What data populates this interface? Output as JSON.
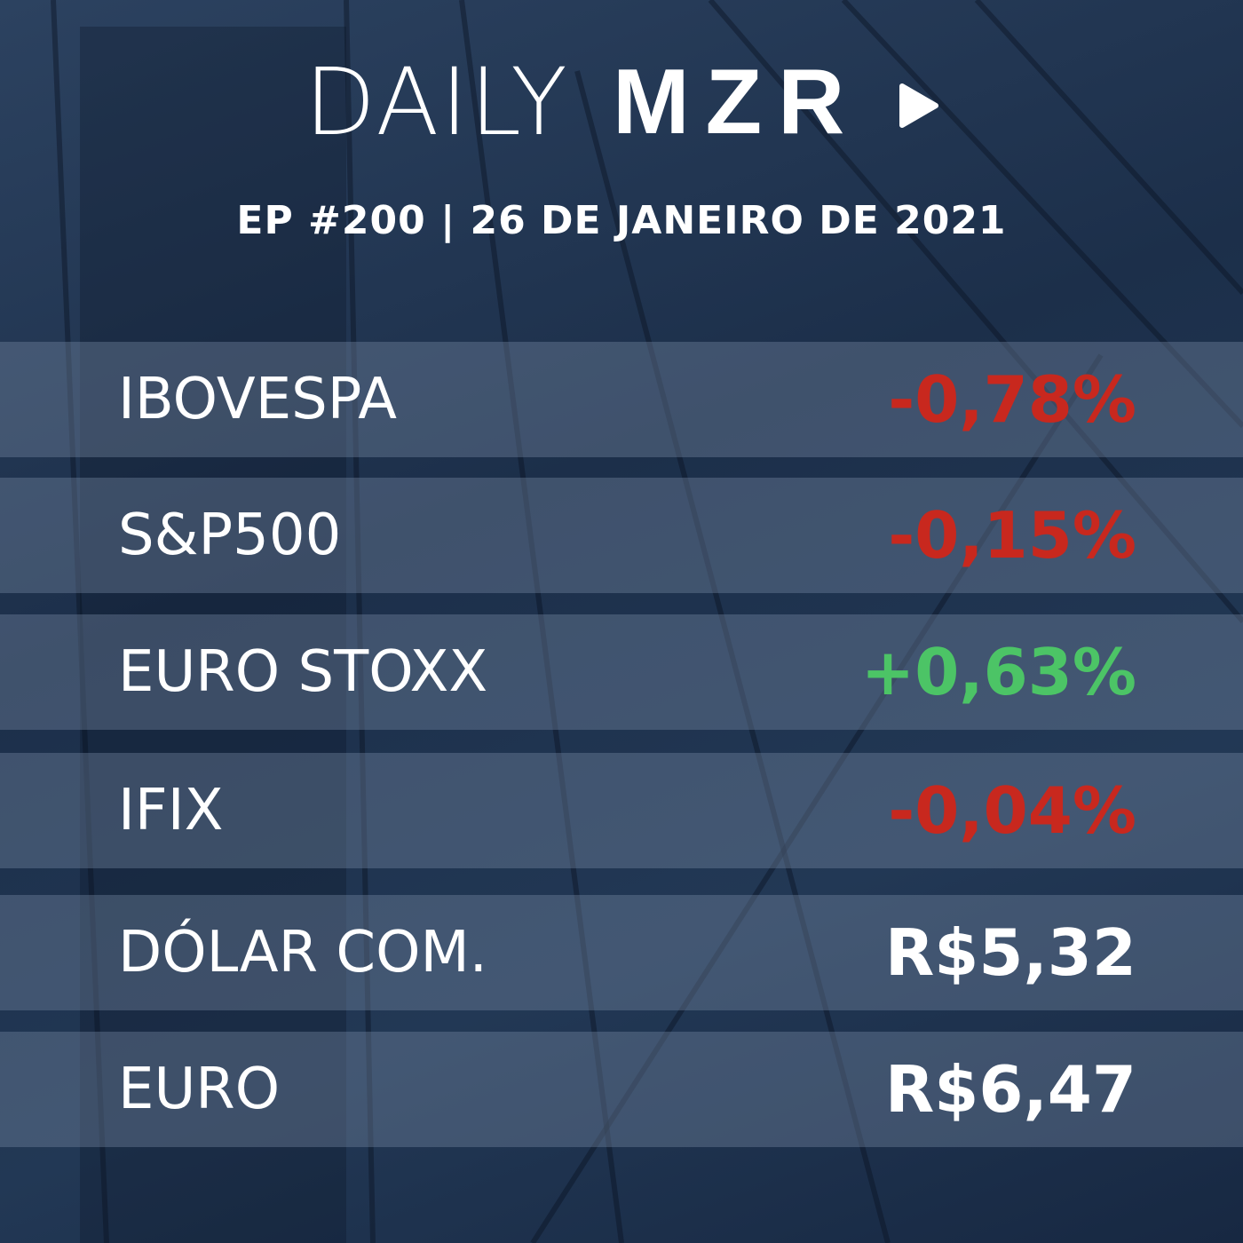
{
  "header": {
    "brand_light": "DAILY",
    "brand_bold": "MZR",
    "subtitle": "EP #200 | 26 DE JANEIRO DE 2021"
  },
  "table": {
    "rows": [
      {
        "label": "IBOVESPA",
        "value": "-0,78%",
        "color": "#c8281e"
      },
      {
        "label": "S&P500",
        "value": "-0,15%",
        "color": "#c8281e"
      },
      {
        "label": "EURO STOXX",
        "value": "+0,63%",
        "color": "#4cc466"
      },
      {
        "label": "IFIX",
        "value": "-0,04%",
        "color": "#c8281e"
      },
      {
        "label": "DÓLAR COM.",
        "value": "R$5,32",
        "color": "#ffffff"
      },
      {
        "label": "EURO",
        "value": "R$6,47",
        "color": "#ffffff"
      }
    ]
  }
}
